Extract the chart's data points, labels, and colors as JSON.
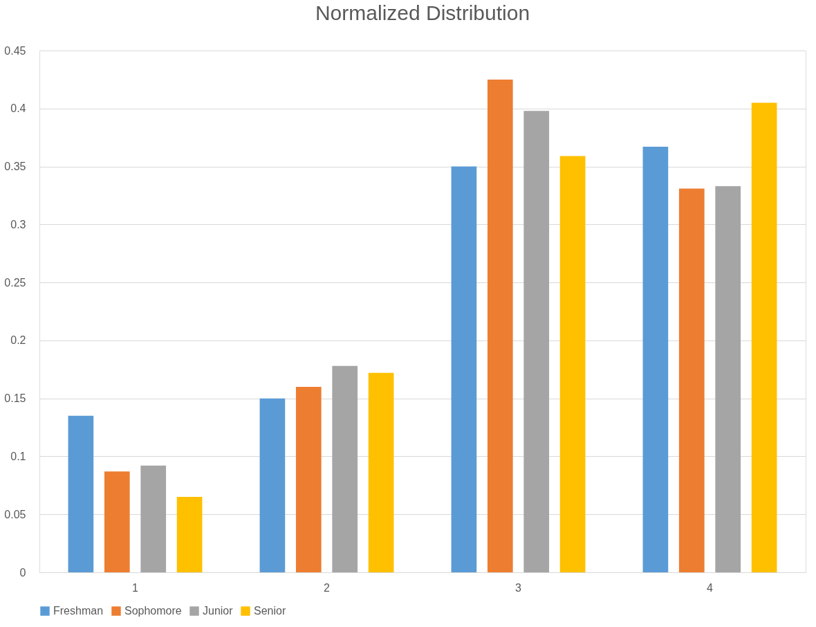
{
  "chart_data": {
    "type": "bar",
    "title": "Normalized Distribution",
    "categories": [
      "1",
      "2",
      "3",
      "4"
    ],
    "series": [
      {
        "name": "Freshman",
        "color": "#5b9bd5",
        "values": [
          0.135,
          0.15,
          0.35,
          0.367
        ]
      },
      {
        "name": "Sophomore",
        "color": "#ed7d31",
        "values": [
          0.087,
          0.16,
          0.425,
          0.331
        ]
      },
      {
        "name": "Junior",
        "color": "#a5a5a5",
        "values": [
          0.092,
          0.178,
          0.398,
          0.333
        ]
      },
      {
        "name": "Senior",
        "color": "#ffc000",
        "values": [
          0.065,
          0.172,
          0.359,
          0.405
        ]
      }
    ],
    "ylim": [
      0,
      0.45
    ],
    "yticks": [
      0,
      0.05,
      0.1,
      0.15,
      0.2,
      0.25,
      0.3,
      0.35,
      0.4,
      0.45
    ],
    "grid": "y",
    "legend": "bottom"
  }
}
